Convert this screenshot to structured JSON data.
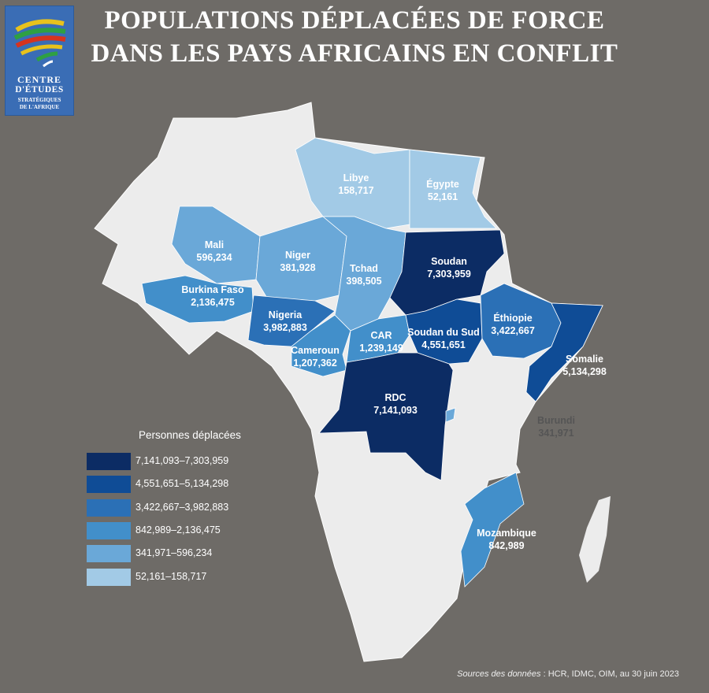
{
  "title_line1": "POPULATIONS DÉPLACÉES DE FORCE",
  "title_line2": "DANS LES PAYS AFRICAINS EN CONFLIT",
  "logo": {
    "line1": "CENTRE",
    "line2": "D'ÉTUDES",
    "line3": "STRATÉGIQUES",
    "line4": "DE L'AFRIQUE"
  },
  "colors": {
    "background": "#6e6b67",
    "land": "#ececec",
    "class1": "#0c2c64",
    "class2": "#0f4c96",
    "class3": "#2b70b6",
    "class4": "#428fca",
    "class5": "#6aa8d8",
    "class6": "#a2cae6"
  },
  "map_data": {
    "unit_label": "Personnes déplacées",
    "regions": [
      {
        "name": "Libye",
        "value": "158,717",
        "class": 6
      },
      {
        "name": "Égypte",
        "value": "52,161",
        "class": 6
      },
      {
        "name": "Mali",
        "value": "596,234",
        "class": 5
      },
      {
        "name": "Niger",
        "value": "381,928",
        "class": 5
      },
      {
        "name": "Tchad",
        "value": "398,505",
        "class": 5
      },
      {
        "name": "Soudan",
        "value": "7,303,959",
        "class": 1
      },
      {
        "name": "Burkina Faso",
        "value": "2,136,475",
        "class": 4
      },
      {
        "name": "Nigeria",
        "value": "3,982,883",
        "class": 3
      },
      {
        "name": "Cameroun",
        "value": "1,207,362",
        "class": 4
      },
      {
        "name": "CAR",
        "value": "1,239,149",
        "class": 4
      },
      {
        "name": "Soudan du Sud",
        "value": "4,551,651",
        "class": 2
      },
      {
        "name": "Éthiopie",
        "value": "3,422,667",
        "class": 3
      },
      {
        "name": "Somalie",
        "value": "5,134,298",
        "class": 2
      },
      {
        "name": "RDC",
        "value": "7,141,093",
        "class": 1
      },
      {
        "name": "Burundi",
        "value": "341,971",
        "class": 5
      },
      {
        "name": "Mozambique",
        "value": "842,989",
        "class": 4
      }
    ],
    "legend": [
      {
        "label": "7,141,093–7,303,959",
        "class": 1
      },
      {
        "label": "4,551,651–5,134,298",
        "class": 2
      },
      {
        "label": "3,422,667–3,982,883",
        "class": 3
      },
      {
        "label": "842,989–2,136,475",
        "class": 4
      },
      {
        "label": "341,971–596,234",
        "class": 5
      },
      {
        "label": "52,161–158,717",
        "class": 6
      }
    ]
  },
  "source": {
    "prefix": "Sources des données",
    "text": " : HCR, IDMC, OIM, au 30 juin 2023"
  }
}
